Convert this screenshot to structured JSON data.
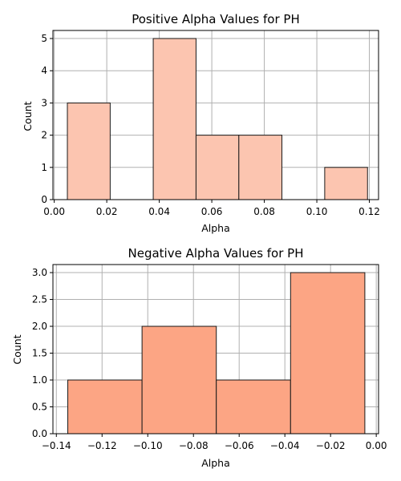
{
  "chart_data": [
    {
      "type": "bar",
      "title": "Positive Alpha Values for PH",
      "xlabel": "Alpha",
      "ylabel": "Count",
      "xlim": [
        -0.0005,
        0.1235
      ],
      "ylim": [
        0,
        5.25
      ],
      "bins": [
        {
          "x0": 0.005,
          "x1": 0.0213,
          "count": 3
        },
        {
          "x0": 0.0213,
          "x1": 0.0377,
          "count": 0
        },
        {
          "x0": 0.0377,
          "x1": 0.054,
          "count": 5
        },
        {
          "x0": 0.054,
          "x1": 0.0703,
          "count": 2
        },
        {
          "x0": 0.0703,
          "x1": 0.0867,
          "count": 2
        },
        {
          "x0": 0.0867,
          "x1": 0.103,
          "count": 0
        },
        {
          "x0": 0.103,
          "x1": 0.1193,
          "count": 1
        }
      ],
      "xticks": [
        0.0,
        0.02,
        0.04,
        0.06,
        0.08,
        0.1,
        0.12
      ],
      "xtick_labels": [
        "0.00",
        "0.02",
        "0.04",
        "0.06",
        "0.08",
        "0.10",
        "0.12"
      ],
      "yticks": [
        0,
        1,
        2,
        3,
        4,
        5
      ],
      "ytick_labels": [
        "0",
        "1",
        "2",
        "3",
        "4",
        "5"
      ],
      "grid": true,
      "bar_color": "#fcc5b0",
      "edge_color": "#1a1a1a"
    },
    {
      "type": "bar",
      "title": "Negative Alpha Values for PH",
      "xlabel": "Alpha",
      "ylabel": "Count",
      "xlim": [
        -0.1415,
        0.001
      ],
      "ylim": [
        0,
        3.15
      ],
      "bins": [
        {
          "x0": -0.135,
          "x1": -0.1025,
          "count": 1
        },
        {
          "x0": -0.1025,
          "x1": -0.07,
          "count": 2
        },
        {
          "x0": -0.07,
          "x1": -0.0375,
          "count": 1
        },
        {
          "x0": -0.0375,
          "x1": -0.005,
          "count": 3
        }
      ],
      "xticks": [
        -0.14,
        -0.12,
        -0.1,
        -0.08,
        -0.06,
        -0.04,
        -0.02,
        0.0
      ],
      "xtick_labels": [
        "−0.14",
        "−0.12",
        "−0.10",
        "−0.08",
        "−0.06",
        "−0.04",
        "−0.02",
        "0.00"
      ],
      "yticks": [
        0,
        0.5,
        1.0,
        1.5,
        2.0,
        2.5,
        3.0
      ],
      "ytick_labels": [
        "0.0",
        "0.5",
        "1.0",
        "1.5",
        "2.0",
        "2.5",
        "3.0"
      ],
      "grid": true,
      "bar_color": "#fca584",
      "edge_color": "#1a1a1a"
    }
  ]
}
